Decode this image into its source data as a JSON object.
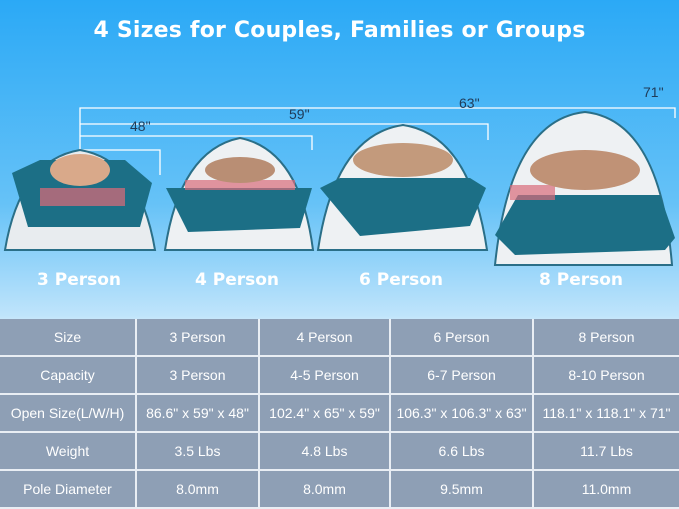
{
  "title": "4 Sizes for Couples, Families or Groups",
  "tents": [
    {
      "label": "3 Person",
      "height": "48\""
    },
    {
      "label": "4 Person",
      "height": "59\""
    },
    {
      "label": "6 Person",
      "height": "63\""
    },
    {
      "label": "8 Person",
      "height": "71\""
    }
  ],
  "colors": {
    "tent_floor": "#1c6f86",
    "tent_canopy": "#f2f4f5",
    "table_bg": "#8e9fb5"
  },
  "table": {
    "rows": [
      [
        "Size",
        "3 Person",
        "4 Person",
        "6 Person",
        "8 Person"
      ],
      [
        "Capacity",
        "3 Person",
        "4-5 Person",
        "6-7 Person",
        "8-10 Person"
      ],
      [
        "Open Size(L/W/H)",
        "86.6\" x 59\" x 48\"",
        "102.4\" x 65\" x 59\"",
        "106.3\" x 106.3\" x 63\"",
        "118.1\" x 118.1\" x 71\""
      ],
      [
        "Weight",
        "3.5 Lbs",
        "4.8 Lbs",
        "6.6 Lbs",
        "11.7 Lbs"
      ],
      [
        "Pole Diameter",
        "8.0mm",
        "8.0mm",
        "9.5mm",
        "11.0mm"
      ]
    ]
  }
}
